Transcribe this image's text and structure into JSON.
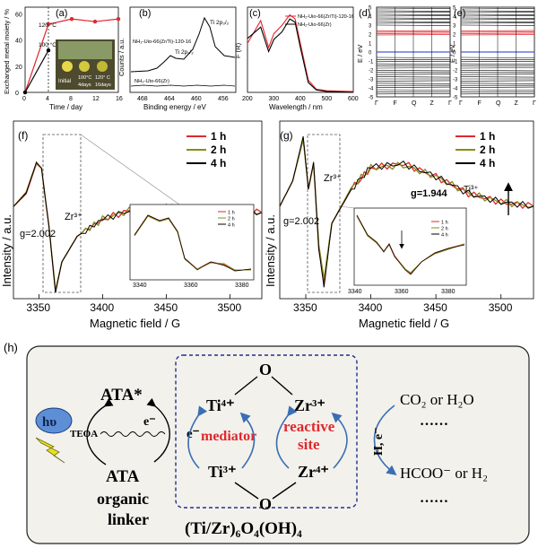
{
  "panels": {
    "a": {
      "tag": "(a)",
      "ylabel": "Exchanged metal moiety / %",
      "xlabel": "Time / day",
      "xticks": [
        "0",
        "4",
        "8",
        "12",
        "16"
      ],
      "yticks": [
        "0",
        "20",
        "40",
        "60"
      ],
      "ann_120": "120 °C",
      "ann_100": "100 °C",
      "photo_labels": [
        "Initial",
        "100°C",
        "4days",
        "120° C",
        "16days"
      ],
      "colors": {
        "s120": "#e0282e",
        "s100": "#000000"
      }
    },
    "b": {
      "tag": "(b)",
      "ylabel": "Counts / a.u.",
      "xlabel": "Binding energy / eV",
      "xticks": [
        "468",
        "464",
        "460",
        "456"
      ],
      "label_top": "NH₂-Uio-66(Zr/Ti)-120-16",
      "label_bottom": "NH₂-Uio-66(Zr)",
      "peak1": "Ti 2p₁/₂",
      "peak2": "Ti 2p₃/₂"
    },
    "c": {
      "tag": "(c)",
      "ylabel": "F (R)",
      "xlabel": "Wavelength / nm",
      "xticks": [
        "200",
        "300",
        "400",
        "500",
        "600"
      ],
      "legend": [
        "NH₂-Uio-66(Zr/Ti)-120-16",
        "NH₂-Uio-66(Zr)"
      ],
      "colors": [
        "#e0282e",
        "#000000"
      ]
    },
    "d": {
      "tag": "(d)",
      "ylabel": "E / eV",
      "yticks": [
        "5",
        "4",
        "3",
        "2",
        "1",
        "0",
        "-1",
        "-2",
        "-3",
        "-4",
        "-5"
      ],
      "xticks": [
        "Γ",
        "F",
        "Q",
        "Z",
        "Γ"
      ]
    },
    "e": {
      "tag": "(e)",
      "ylabel": "E / eV",
      "yticks": [
        "5",
        "4",
        "3",
        "2",
        "1",
        "0",
        "-1",
        "-2",
        "-3",
        "-4",
        "-5"
      ],
      "xticks": [
        "Γ",
        "F",
        "Q",
        "Z",
        "Γ"
      ]
    },
    "f": {
      "tag": "(f)",
      "ylabel": "Intensity / a.u.",
      "xlabel": "Magnetic field / G",
      "xticks": [
        "3350",
        "3400",
        "3450",
        "3500"
      ],
      "legend": [
        "1 h",
        "2 h",
        "4 h"
      ],
      "colors": [
        "#e0282e",
        "#8b8b1a",
        "#000000"
      ],
      "zr_label": "Zr³⁺",
      "g_label": "g=2.002",
      "inset_xticks": [
        "3340",
        "3360",
        "3380"
      ],
      "inset_legend": [
        "1 h",
        "2 h",
        "4 h"
      ]
    },
    "g": {
      "tag": "(g)",
      "ylabel": "Intensity / a.u.",
      "xlabel": "Magnetic field / G",
      "xticks": [
        "3350",
        "3400",
        "3450",
        "3500"
      ],
      "legend": [
        "1 h",
        "2 h",
        "4 h"
      ],
      "colors": [
        "#e0282e",
        "#8b8b1a",
        "#000000"
      ],
      "zr_label": "Zr³⁺",
      "g_label": "g=2.002",
      "g2_label": "g=1.944",
      "ti_label": "Ti³⁺",
      "inset_xticks": [
        "3340",
        "3360",
        "3380"
      ],
      "inset_legend": [
        "1 h",
        "2 h",
        "4 h"
      ]
    },
    "h": {
      "tag": "(h)",
      "hv": "hυ",
      "ata_star": "ATA*",
      "teoa": "TEOA",
      "e_minus": "e⁻",
      "ata": "ATA",
      "organic": "organic",
      "linker": "linker",
      "o_top": "O",
      "o_bottom": "O",
      "ti4": "Ti⁴⁺",
      "zr3": "Zr³⁺",
      "ti3": "Ti³⁺",
      "zr4": "Zr⁴⁺",
      "e_mediator": "e⁻",
      "mediator": "mediator",
      "reactive": "reactive",
      "site": "site",
      "h_e": "H, e⁻",
      "co2": "CO₂ or H₂O",
      "dots1": "……",
      "hcoo": "HCOO⁻ or H₂",
      "dots2": "……",
      "formula": "(Ti/Zr)₆O₄(OH)₄",
      "colors": {
        "red": "#e0282e",
        "blue": "#3a6fb4",
        "dashbox": "#1f2f8f",
        "hv_fill": "#5d8fd6"
      }
    }
  },
  "chart_data": [
    {
      "type": "line",
      "xlabel": "Time / day",
      "ylabel": "Exchanged metal moiety / %",
      "xlim": [
        0,
        16
      ],
      "ylim": [
        0,
        65
      ],
      "series": [
        {
          "name": "120 °C",
          "x": [
            0,
            4,
            8,
            12,
            16
          ],
          "y": [
            0,
            52,
            56,
            54,
            56
          ]
        },
        {
          "name": "100 °C",
          "x": [
            0,
            4
          ],
          "y": [
            0,
            32
          ]
        }
      ]
    },
    {
      "type": "line",
      "xlabel": "Wavelength / nm",
      "ylabel": "F (R)",
      "xlim": [
        200,
        600
      ],
      "series": [
        {
          "name": "NH₂-Uio-66(Zr/Ti)-120-16",
          "x": [
            200,
            250,
            280,
            300,
            330,
            360,
            380,
            400,
            430,
            460,
            500,
            600
          ],
          "y": [
            0.6,
            0.88,
            0.55,
            0.72,
            0.82,
            0.95,
            0.9,
            0.6,
            0.15,
            0.04,
            0.02,
            0.01
          ]
        },
        {
          "name": "NH₂-Uio-66(Zr)",
          "x": [
            200,
            250,
            280,
            300,
            330,
            360,
            380,
            400,
            430,
            460,
            500,
            600
          ],
          "y": [
            0.66,
            0.8,
            0.5,
            0.65,
            0.74,
            0.9,
            0.86,
            0.55,
            0.12,
            0.03,
            0.01,
            0.0
          ]
        }
      ]
    },
    {
      "type": "line",
      "xlabel": "Magnetic field / G",
      "ylabel": "Intensity / a.u.",
      "xlim": [
        3330,
        3525
      ],
      "series": [
        {
          "name": "1 h",
          "x": [
            3330,
            3340,
            3348,
            3352,
            3358,
            3363,
            3368,
            3380,
            3400,
            3425,
            3450,
            3475,
            3500,
            3525
          ],
          "y": [
            0.05,
            0.2,
            0.55,
            0.5,
            -0.2,
            -0.95,
            -0.6,
            -0.3,
            -0.1,
            0.02,
            0.04,
            0.02,
            0.0,
            -0.02
          ]
        },
        {
          "name": "2 h",
          "x": [
            3330,
            3340,
            3348,
            3352,
            3358,
            3363,
            3368,
            3380,
            3400,
            3425,
            3450,
            3475,
            3500,
            3525
          ],
          "y": [
            0.05,
            0.22,
            0.56,
            0.5,
            -0.2,
            -0.93,
            -0.6,
            -0.3,
            -0.1,
            0.02,
            0.03,
            0.02,
            0.0,
            -0.02
          ]
        },
        {
          "name": "4 h",
          "x": [
            3330,
            3340,
            3348,
            3352,
            3358,
            3363,
            3368,
            3380,
            3400,
            3425,
            3450,
            3475,
            3500,
            3525
          ],
          "y": [
            0.05,
            0.21,
            0.57,
            0.5,
            -0.2,
            -0.96,
            -0.6,
            -0.3,
            -0.1,
            0.02,
            0.04,
            0.02,
            0.0,
            -0.02
          ]
        }
      ]
    },
    {
      "type": "line",
      "xlabel": "Magnetic field / G",
      "ylabel": "Intensity / a.u.",
      "xlim": [
        3330,
        3525
      ],
      "series": [
        {
          "name": "1 h",
          "x": [
            3330,
            3340,
            3348,
            3352,
            3356,
            3360,
            3364,
            3370,
            3385,
            3400,
            3425,
            3450,
            3475,
            3500,
            3525
          ],
          "y": [
            0.0,
            0.3,
            0.8,
            0.2,
            0.5,
            -0.5,
            -0.9,
            -0.2,
            0.2,
            0.45,
            0.5,
            0.35,
            0.15,
            0.05,
            0.0
          ]
        },
        {
          "name": "2 h",
          "x": [
            3330,
            3340,
            3348,
            3352,
            3356,
            3360,
            3364,
            3370,
            3385,
            3400,
            3425,
            3450,
            3475,
            3500,
            3525
          ],
          "y": [
            0.0,
            0.3,
            0.78,
            0.22,
            0.5,
            -0.45,
            -0.85,
            -0.2,
            0.22,
            0.45,
            0.48,
            0.35,
            0.15,
            0.05,
            0.0
          ]
        },
        {
          "name": "4 h",
          "x": [
            3330,
            3340,
            3348,
            3352,
            3356,
            3360,
            3364,
            3370,
            3385,
            3400,
            3425,
            3450,
            3475,
            3500,
            3525
          ],
          "y": [
            0.0,
            0.3,
            0.82,
            0.2,
            0.52,
            -0.5,
            -0.95,
            -0.2,
            0.2,
            0.46,
            0.5,
            0.35,
            0.15,
            0.05,
            0.0
          ]
        }
      ]
    }
  ]
}
